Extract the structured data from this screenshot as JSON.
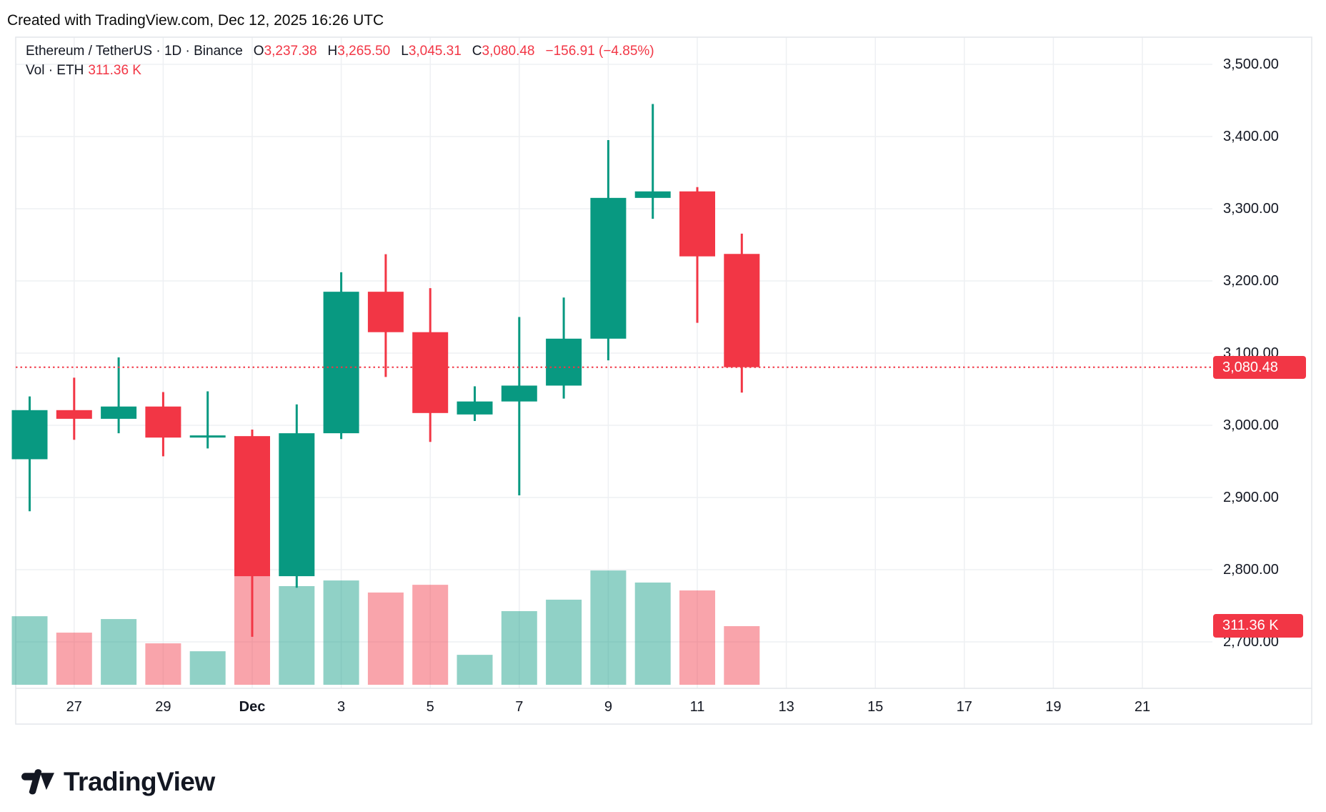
{
  "attribution": "Created with TradingView.com, Dec 12, 2025 16:26 UTC",
  "legend": {
    "title": "Ethereum / TetherUS · 1D · Binance",
    "ohlc": [
      {
        "label": "O",
        "value": "3,237.38"
      },
      {
        "label": "H",
        "value": "3,265.50"
      },
      {
        "label": "L",
        "value": "3,045.31"
      },
      {
        "label": "C",
        "value": "3,080.48"
      }
    ],
    "change": "−156.91 (−4.85%)",
    "volume_title": "Vol · ETH",
    "volume_value": "311.36 K"
  },
  "price_axis": {
    "labels": [
      "3,500.00",
      "3,400.00",
      "3,300.00",
      "3,200.00",
      "3,100.00",
      "3,000.00",
      "2,900.00",
      "2,800.00",
      "2,700.00"
    ],
    "tick_step": 100,
    "top_value": 3500,
    "last_price_label": "3,080.48",
    "volume_tag_label": "311.36 K"
  },
  "time_axis": {
    "labels": [
      {
        "text": "27",
        "i": 1,
        "bold": false
      },
      {
        "text": "29",
        "i": 3,
        "bold": false
      },
      {
        "text": "Dec",
        "i": 5,
        "bold": true
      },
      {
        "text": "3",
        "i": 7,
        "bold": false
      },
      {
        "text": "5",
        "i": 9,
        "bold": false
      },
      {
        "text": "7",
        "i": 11,
        "bold": false
      },
      {
        "text": "9",
        "i": 13,
        "bold": false
      },
      {
        "text": "11",
        "i": 15,
        "bold": false
      },
      {
        "text": "13",
        "i": 17,
        "bold": false
      },
      {
        "text": "15",
        "i": 19,
        "bold": false
      },
      {
        "text": "17",
        "i": 21,
        "bold": false
      },
      {
        "text": "19",
        "i": 23,
        "bold": false
      },
      {
        "text": "21",
        "i": 25,
        "bold": false
      }
    ]
  },
  "logo": {
    "text": "TradingView"
  },
  "colors": {
    "up": "#089981",
    "down": "#F23645",
    "vol_up": "rgba(8,153,129,0.45)",
    "vol_down": "rgba(242,54,69,0.45)",
    "grid": "#eef0f3",
    "frame": "#e3e6ea",
    "text": "#131722",
    "tag_bg": "#F23645",
    "tag_text": "#ffffff",
    "last_price_line": "#F23645"
  },
  "chart_data": {
    "type": "candlestick",
    "title": "Ethereum / TetherUS · 1D · Binance",
    "volume_unit": "K ETH",
    "last_price": 3080.48,
    "change": -156.91,
    "change_pct": -4.85,
    "y_axis": {
      "min": 2650,
      "max": 3545,
      "ticks": [
        3500,
        3400,
        3300,
        3200,
        3100,
        3000,
        2900,
        2800,
        2700
      ]
    },
    "grid": true,
    "candles": [
      {
        "date": "Nov 26",
        "open": 2953,
        "high": 3040,
        "low": 2881,
        "close": 3021,
        "volume_k": 364
      },
      {
        "date": "Nov 27",
        "open": 3021,
        "high": 3066,
        "low": 2980,
        "close": 3009,
        "volume_k": 277
      },
      {
        "date": "Nov 28",
        "open": 3009,
        "high": 3094,
        "low": 2989,
        "close": 3026,
        "volume_k": 349
      },
      {
        "date": "Nov 29",
        "open": 3026,
        "high": 3046,
        "low": 2957,
        "close": 2983,
        "volume_k": 220
      },
      {
        "date": "Nov 30",
        "open": 2983,
        "high": 3047,
        "low": 2968,
        "close": 2986,
        "volume_k": 178
      },
      {
        "date": "Dec 1",
        "open": 2985,
        "high": 2994,
        "low": 2707,
        "close": 2791,
        "volume_k": 850
      },
      {
        "date": "Dec 2",
        "open": 2791,
        "high": 3029,
        "low": 2775,
        "close": 2989,
        "volume_k": 524
      },
      {
        "date": "Dec 3",
        "open": 2989,
        "high": 3212,
        "low": 2981,
        "close": 3185,
        "volume_k": 554
      },
      {
        "date": "Dec 4",
        "open": 3185,
        "high": 3237,
        "low": 3067,
        "close": 3129,
        "volume_k": 490
      },
      {
        "date": "Dec 5",
        "open": 3129,
        "high": 3190,
        "low": 2977,
        "close": 3017,
        "volume_k": 531
      },
      {
        "date": "Dec 6",
        "open": 3015,
        "high": 3054,
        "low": 3006,
        "close": 3033,
        "volume_k": 159
      },
      {
        "date": "Dec 7",
        "open": 3033,
        "high": 3150,
        "low": 2903,
        "close": 3055,
        "volume_k": 391
      },
      {
        "date": "Dec 8",
        "open": 3055,
        "high": 3177,
        "low": 3037,
        "close": 3120,
        "volume_k": 452
      },
      {
        "date": "Dec 9",
        "open": 3120,
        "high": 3395,
        "low": 3090,
        "close": 3315,
        "volume_k": 607
      },
      {
        "date": "Dec 10",
        "open": 3315,
        "high": 3445,
        "low": 3286,
        "close": 3324,
        "volume_k": 543
      },
      {
        "date": "Dec 11",
        "open": 3324,
        "high": 3330,
        "low": 3142,
        "close": 3234,
        "volume_k": 501
      },
      {
        "date": "Dec 12",
        "open": 3237.38,
        "high": 3265.5,
        "low": 3045.31,
        "close": 3080.48,
        "volume_k": 311.36
      }
    ]
  }
}
